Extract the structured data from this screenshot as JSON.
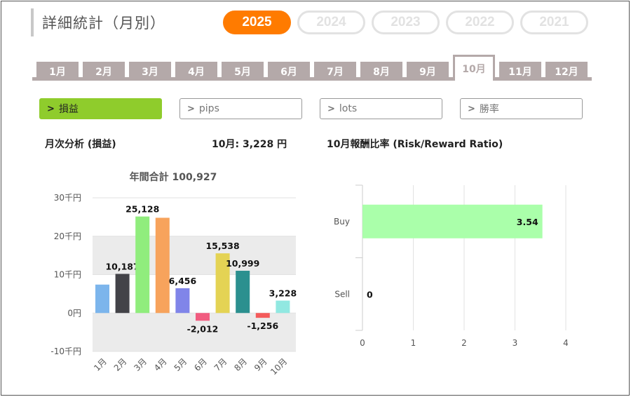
{
  "page": {
    "title": "詳細統計（月別）"
  },
  "years": [
    {
      "label": "2025",
      "active": true
    },
    {
      "label": "2024",
      "active": false
    },
    {
      "label": "2023",
      "active": false
    },
    {
      "label": "2022",
      "active": false
    },
    {
      "label": "2021",
      "active": false
    }
  ],
  "months": [
    "1月",
    "2月",
    "3月",
    "4月",
    "5月",
    "6月",
    "7月",
    "8月",
    "9月",
    "10月",
    "11月",
    "12月"
  ],
  "active_month_index": 9,
  "filters": [
    {
      "label": "損益",
      "active": true
    },
    {
      "label": "pips",
      "active": false
    },
    {
      "label": "lots",
      "active": false
    },
    {
      "label": "勝率",
      "active": false
    }
  ],
  "monthly": {
    "heading": "月次分析 (損益)",
    "current_value": "10月:  3,228 円"
  },
  "ratio": {
    "heading": "10月報酬比率 (Risk/Reward Ratio)"
  },
  "chart_data": [
    {
      "type": "bar",
      "title": "年間合計 100,927",
      "categories": [
        "1月",
        "2月",
        "3月",
        "4月",
        "5月",
        "6月",
        "7月",
        "8月",
        "9月",
        "10月"
      ],
      "values": [
        7400,
        10187,
        25128,
        24800,
        6456,
        -2012,
        15538,
        10999,
        -1256,
        3228
      ],
      "data_labels": [
        "",
        "10,187",
        "25,128",
        "",
        "6,456",
        "-2,012",
        "15,538",
        "10,999",
        "-1,256",
        "3,228"
      ],
      "colors": [
        "#7cb5ec",
        "#434348",
        "#90ed7d",
        "#f7a35c",
        "#8085e9",
        "#f15c80",
        "#e4d354",
        "#2b908f",
        "#f45b5b",
        "#91e8e1"
      ],
      "yticks": [
        "30千円",
        "20千円",
        "10千円",
        "0円",
        "-10千円"
      ],
      "ylim": [
        -10000,
        30000
      ],
      "grid": true
    },
    {
      "type": "bar",
      "orientation": "horizontal",
      "categories": [
        "Buy",
        "Sell"
      ],
      "values": [
        3.54,
        0
      ],
      "data_labels": [
        "3.54",
        "0"
      ],
      "xticks": [
        "0",
        "1",
        "2",
        "3",
        "4"
      ],
      "xlim": [
        0,
        4
      ],
      "colors": [
        "#aaffaa"
      ],
      "grid": true
    }
  ]
}
